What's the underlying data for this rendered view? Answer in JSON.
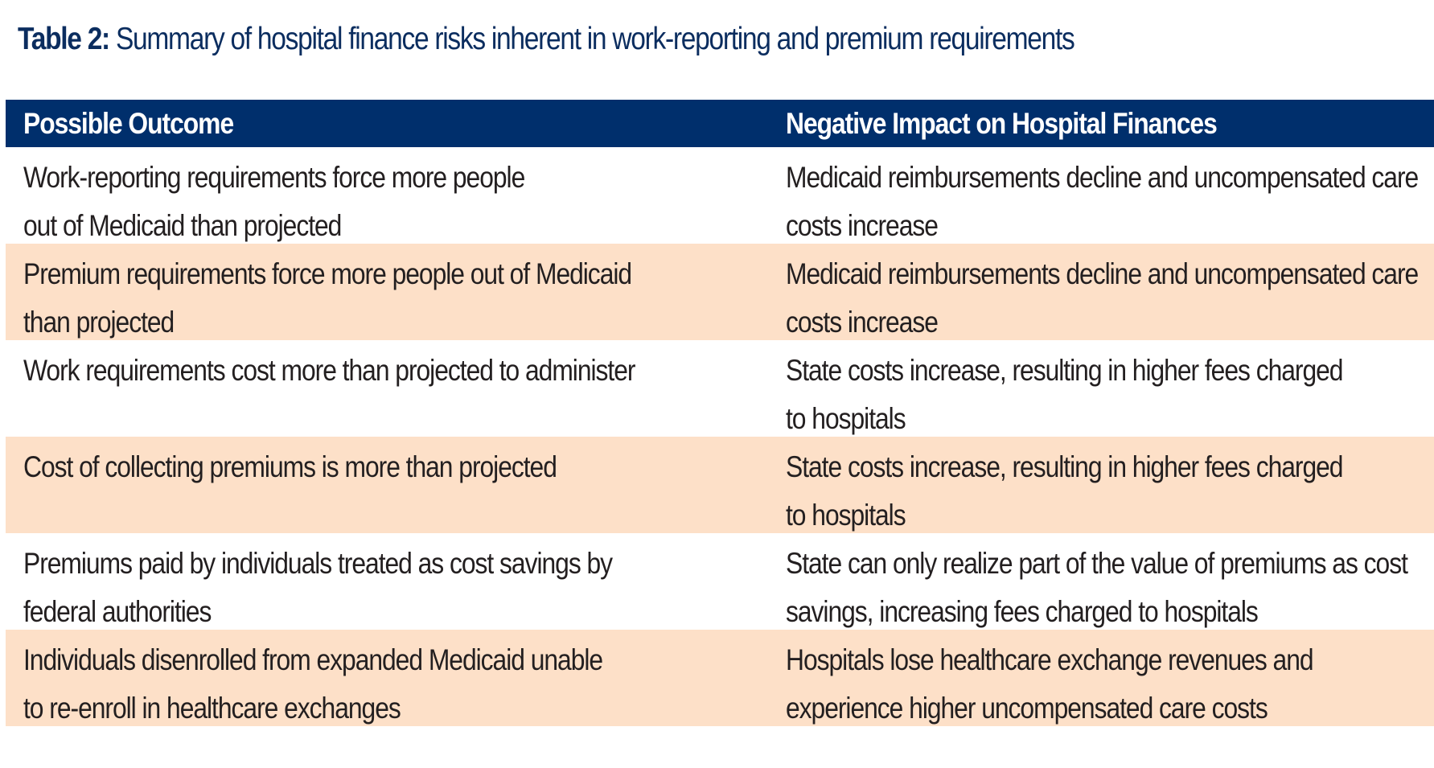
{
  "title": {
    "label": "Table 2:",
    "text": " Summary of hospital finance risks inherent in work-reporting and premium requirements"
  },
  "table": {
    "headers": [
      "Possible Outcome",
      "Negative Impact on Hospital Finances"
    ],
    "rows": [
      {
        "outcome": "Work-reporting requirements force more people\nout of Medicaid than projected",
        "impact": "Medicaid reimbursements decline and uncompensated care\ncosts increase"
      },
      {
        "outcome": "Premium requirements force more people out of Medicaid\nthan projected",
        "impact": "Medicaid reimbursements decline and uncompensated care\ncosts increase"
      },
      {
        "outcome": "Work requirements cost more than projected to administer",
        "impact": "State costs increase, resulting in higher fees charged\nto hospitals"
      },
      {
        "outcome": "Cost of collecting premiums is more than projected",
        "impact": "State costs increase, resulting in higher fees charged\nto hospitals"
      },
      {
        "outcome": "Premiums paid by individuals treated as cost savings by\nfederal authorities",
        "impact": "State can only realize part of the value of premiums as cost\nsavings, increasing fees charged to hospitals"
      },
      {
        "outcome": "Individuals disenrolled from expanded Medicaid unable\nto re-enroll in healthcare exchanges",
        "impact": "Hospitals lose healthcare exchange revenues and\nexperience higher uncompensated care costs"
      }
    ]
  },
  "colors": {
    "header_bg": "#002f6c",
    "title": "#0b2d5f",
    "shaded_row": "#fde0c8",
    "text": "#231f20"
  }
}
